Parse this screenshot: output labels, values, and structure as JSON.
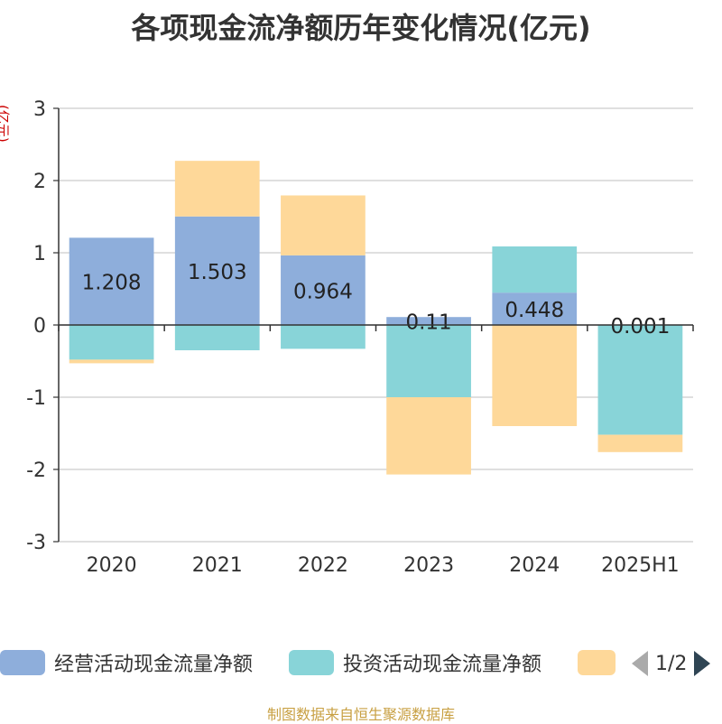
{
  "chart_data": {
    "type": "bar",
    "stacked": true,
    "title": "各项现金流净额历年变化情况(亿元)",
    "ylabel": "(亿元)",
    "ylim": [
      -3,
      3
    ],
    "yticks": [
      3,
      2,
      1,
      0,
      -1,
      -2,
      -3
    ],
    "categories": [
      "2020",
      "2021",
      "2022",
      "2023",
      "2024",
      "2025H1"
    ],
    "series": [
      {
        "name": "经营活动现金流量净额",
        "color": "#8eaedb",
        "values": [
          1.208,
          1.503,
          0.964,
          0.11,
          0.448,
          0.001
        ],
        "labels": [
          "1.208",
          "1.503",
          "0.964",
          "0.11",
          "0.448",
          "0.001"
        ]
      },
      {
        "name": "投资活动现金流量净额",
        "color": "#88d4d8",
        "values": [
          -0.48,
          -0.35,
          -0.33,
          -1.0,
          0.64,
          -1.52
        ]
      },
      {
        "name": "",
        "color": "#fed899",
        "values": [
          -0.05,
          0.77,
          0.83,
          -1.07,
          -1.4,
          -0.24
        ]
      }
    ],
    "grid": true,
    "legend_position": "bottom"
  },
  "legend": {
    "items": [
      {
        "label": "经营活动现金流量净额",
        "color": "#8eaedb"
      },
      {
        "label": "投资活动现金流量净额",
        "color": "#88d4d8"
      },
      {
        "label": "",
        "color": "#fed899"
      }
    ],
    "pager": "1/2"
  },
  "source": "制图数据来自恒生聚源数据库"
}
